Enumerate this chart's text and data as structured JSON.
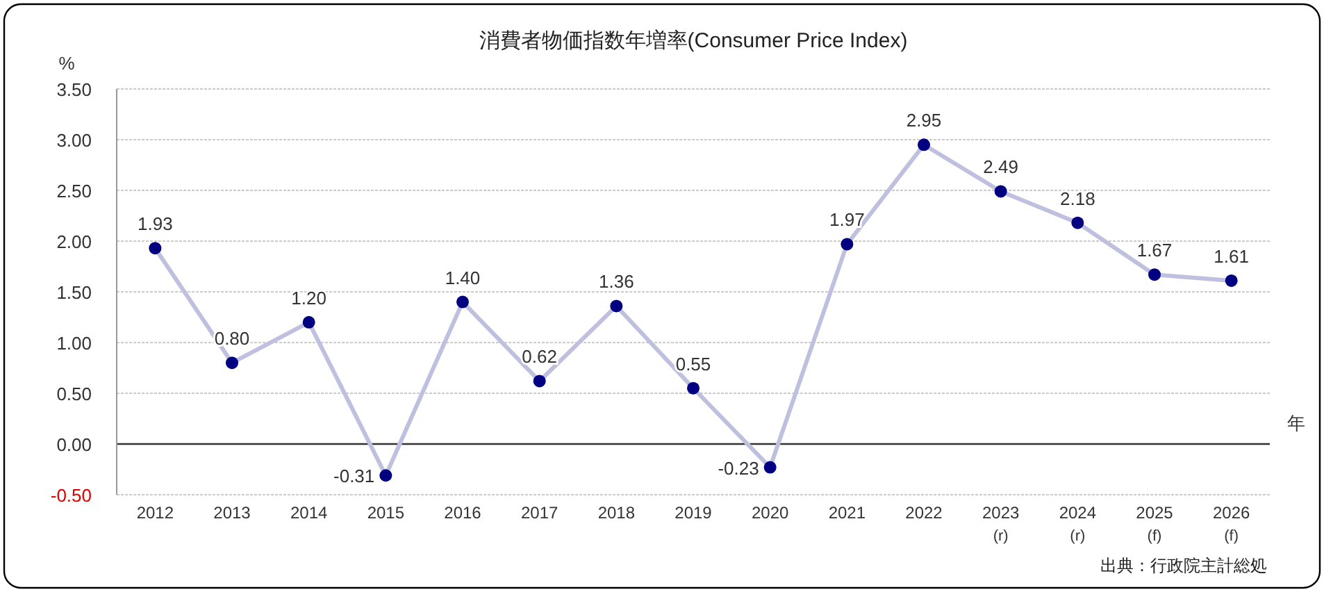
{
  "chart_data": {
    "type": "line",
    "title": "消費者物価指数年増率(Consumer Price Index)",
    "ylabel": "%",
    "xlabel": "年",
    "annotations": [
      "出典：行政院主計総処"
    ],
    "categories": [
      "2012",
      "2013",
      "2014",
      "2015",
      "2016",
      "2017",
      "2018",
      "2019",
      "2020",
      "2021",
      "2022",
      "2023\n(r)",
      "2024\n(r)",
      "2025\n(f)",
      "2026\n(f)"
    ],
    "series": [
      {
        "color": "#000080",
        "values": [
          1.93,
          0.8,
          1.2,
          -0.31,
          1.4,
          0.62,
          1.36,
          0.55,
          -0.23,
          1.97,
          2.95,
          2.49,
          2.18,
          1.67,
          1.61
        ],
        "value_labels": [
          "1.93",
          "0.80",
          "1.20",
          "-0.31",
          "1.40",
          "0.62",
          "1.36",
          "0.55",
          "-0.23",
          "1.97",
          "2.95",
          "2.49",
          "2.18",
          "1.67",
          "1.61"
        ]
      }
    ],
    "ylim": [
      -0.5,
      3.5
    ],
    "yticks": [
      {
        "value": -0.5,
        "label": "-0.50"
      },
      {
        "value": 0,
        "label": "0.00"
      },
      {
        "value": 0.5,
        "label": "0.50"
      },
      {
        "value": 1,
        "label": "1.00"
      },
      {
        "value": 1.5,
        "label": "1.50"
      },
      {
        "value": 2,
        "label": "2.00"
      },
      {
        "value": 2.5,
        "label": "2.50"
      },
      {
        "value": 3,
        "label": "3.00"
      },
      {
        "value": 3.5,
        "label": "3.50"
      }
    ],
    "grid": "y",
    "marker": "circle",
    "line_style": "solid"
  }
}
